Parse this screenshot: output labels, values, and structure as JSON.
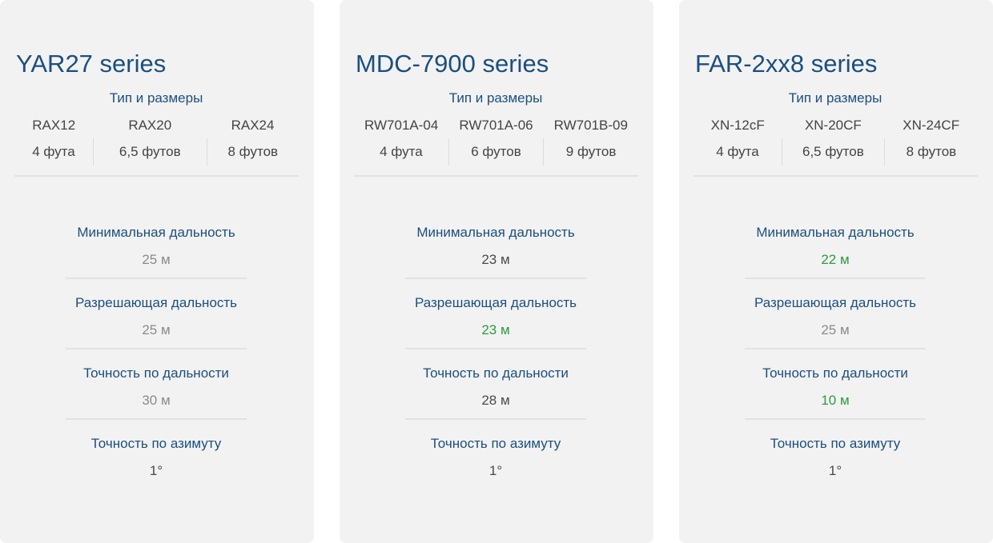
{
  "colors": {
    "title": "#1b4f7f",
    "card_bg": "#f2f2f2",
    "value_gray": "#8a8a8a",
    "value_dark": "#4a4a4a",
    "value_green": "#2e9a3e"
  },
  "cards": [
    {
      "title": "YAR27 series",
      "types_label": "Тип и размеры",
      "types": [
        {
          "name": "RAX12",
          "size": "4 фута"
        },
        {
          "name": "RAX20",
          "size": "6,5 футов"
        },
        {
          "name": "RAX24",
          "size": "8 футов"
        }
      ],
      "specs": [
        {
          "label": "Минимальная дальность",
          "value": "25 м",
          "tone": "gray"
        },
        {
          "label": "Разрешающая дальность",
          "value": "25 м",
          "tone": "gray"
        },
        {
          "label": "Точность по дальности",
          "value": "30 м",
          "tone": "gray"
        },
        {
          "label": "Точность по азимуту",
          "value": "1°",
          "tone": "dark"
        }
      ]
    },
    {
      "title": "MDC-7900 series",
      "types_label": "Тип и размеры",
      "types": [
        {
          "name": "RW701A-04",
          "size": "4 фута"
        },
        {
          "name": "RW701A-06",
          "size": "6 футов"
        },
        {
          "name": "RW701B-09",
          "size": "9 футов"
        }
      ],
      "specs": [
        {
          "label": "Минимальная дальность",
          "value": "23 м",
          "tone": "dark"
        },
        {
          "label": "Разрешающая дальность",
          "value": "23 м",
          "tone": "green"
        },
        {
          "label": "Точность по дальности",
          "value": "28 м",
          "tone": "dark"
        },
        {
          "label": "Точность по азимуту",
          "value": "1°",
          "tone": "dark"
        }
      ]
    },
    {
      "title": "FAR-2xx8 series",
      "types_label": "Тип и размеры",
      "types": [
        {
          "name": "XN-12cF",
          "size": "4 фута"
        },
        {
          "name": "XN-20CF",
          "size": "6,5 футов"
        },
        {
          "name": "XN-24CF",
          "size": "8 футов"
        }
      ],
      "specs": [
        {
          "label": "Минимальная дальность",
          "value": "22 м",
          "tone": "green"
        },
        {
          "label": "Разрешающая дальность",
          "value": "25 м",
          "tone": "gray"
        },
        {
          "label": "Точность по дальности",
          "value": "10 м",
          "tone": "green"
        },
        {
          "label": "Точность по азимуту",
          "value": "1°",
          "tone": "dark"
        }
      ]
    }
  ]
}
